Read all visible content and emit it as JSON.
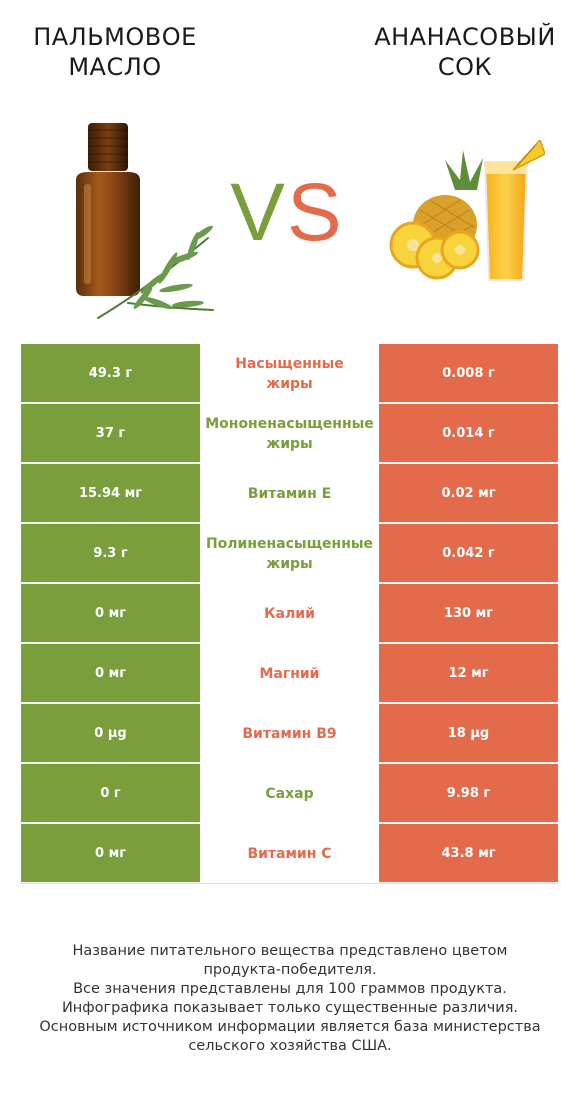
{
  "header": {
    "left_title_line1": "ПАЛЬМОВОЕ",
    "left_title_line2": "МАСЛО",
    "right_title_line1": "АНАНАСОВЫЙ",
    "right_title_line2": "СОК",
    "vs_v": "V",
    "vs_s": "S"
  },
  "colors": {
    "left_winner": "#7a9e3b",
    "right_winner": "#e36b4c"
  },
  "rows": [
    {
      "left": "49.3 г",
      "nutrient": "Насыщенные\nжиры",
      "right": "0.008 г",
      "winner": "right"
    },
    {
      "left": "37 г",
      "nutrient": "Мононенасыщенные\nжиры",
      "right": "0.014 г",
      "winner": "left"
    },
    {
      "left": "15.94 мг",
      "nutrient": "Витамин E",
      "right": "0.02 мг",
      "winner": "left"
    },
    {
      "left": "9.3 г",
      "nutrient": "Полиненасыщенные\nжиры",
      "right": "0.042 г",
      "winner": "left"
    },
    {
      "left": "0 мг",
      "nutrient": "Калий",
      "right": "130 мг",
      "winner": "right"
    },
    {
      "left": "0 мг",
      "nutrient": "Магний",
      "right": "12 мг",
      "winner": "right"
    },
    {
      "left": "0 µg",
      "nutrient": "Витамин B9",
      "right": "18 µg",
      "winner": "right"
    },
    {
      "left": "0 г",
      "nutrient": "Сахар",
      "right": "9.98 г",
      "winner": "left"
    },
    {
      "left": "0 мг",
      "nutrient": "Витамин C",
      "right": "43.8 мг",
      "winner": "right"
    }
  ],
  "footer": {
    "line1": "Название питательного вещества представлено цветом",
    "line2": "продукта-победителя.",
    "line3": "Все значения представлены для 100 граммов продукта.",
    "line4": "Инфографика показывает только существенные различия.",
    "line5": "Основным источником информации является база министерства",
    "line6": "сельского хозяйства США."
  }
}
